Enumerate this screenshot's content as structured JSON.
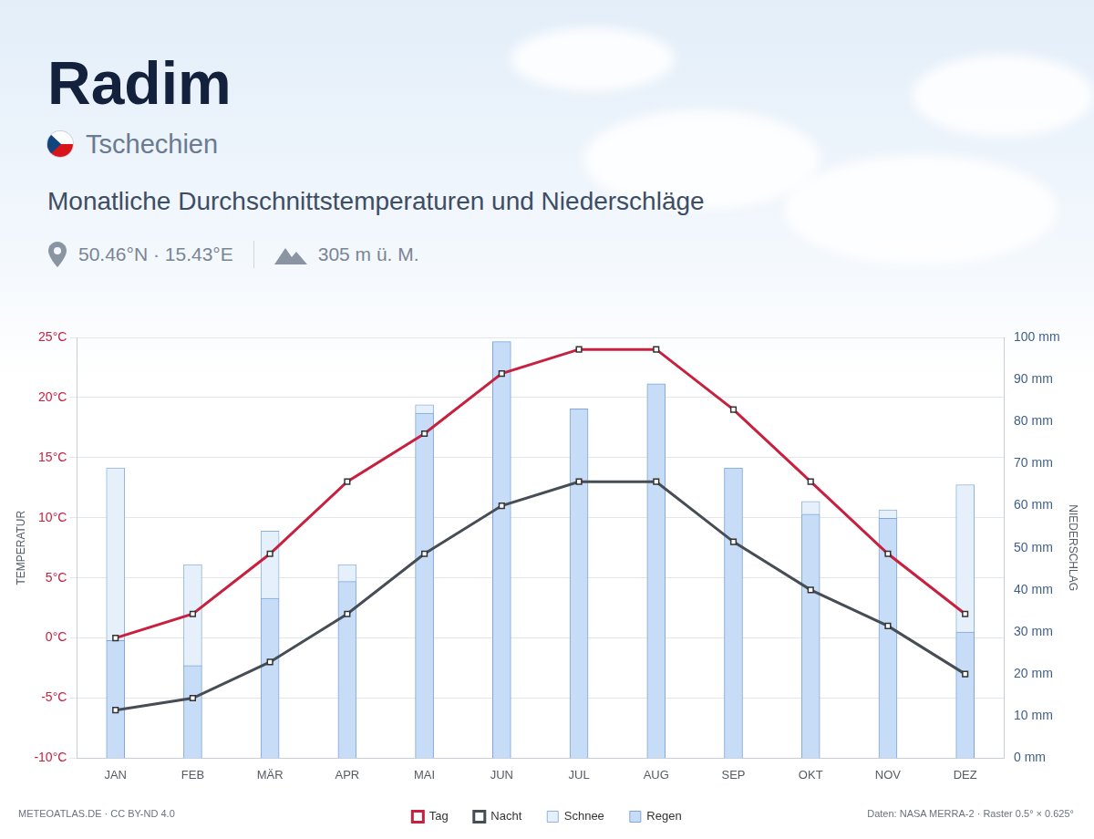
{
  "chart_data": {
    "type": "bar",
    "title": "Radim",
    "country": "Tschechien",
    "subtitle": "Monatliche Durchschnittstemperaturen und Niederschläge",
    "coordinates": "50.46°N · 15.43°E",
    "elevation": "305 m ü. M.",
    "credit": "METEOATLAS.DE · CC BY-ND 4.0",
    "source": "Daten: NASA MERRA-2 · Raster 0.5° × 0.625°",
    "ylabel": "TEMPERATUR",
    "y2label": "NIEDERSCHLAG",
    "categories": [
      "JAN",
      "FEB",
      "MÄR",
      "APR",
      "MAI",
      "JUN",
      "JUL",
      "AUG",
      "SEP",
      "OKT",
      "NOV",
      "DEZ"
    ],
    "series": [
      {
        "name": "Tag",
        "type": "line",
        "color": "#c8203f",
        "marker": "square",
        "line_style": "solid",
        "values": [
          0,
          2,
          7,
          13,
          17,
          22,
          24,
          24,
          19,
          13,
          7,
          2
        ]
      },
      {
        "name": "Nacht",
        "type": "line",
        "color": "#474d55",
        "marker": "square",
        "line_style": "solid",
        "values": [
          -6,
          -5,
          -2,
          2,
          7,
          11,
          13,
          13,
          8,
          4,
          1,
          -3
        ]
      },
      {
        "name": "Schnee",
        "type": "bar",
        "axis": "y2",
        "color": "#e6f0fb",
        "values": [
          41,
          24,
          16,
          4,
          2,
          0,
          0,
          0,
          0,
          3,
          2,
          35
        ]
      },
      {
        "name": "Regen",
        "type": "bar",
        "axis": "y2",
        "color": "#c6dcf7",
        "values": [
          28,
          22,
          38,
          42,
          82,
          99,
          83,
          89,
          69,
          58,
          57,
          30
        ]
      }
    ],
    "ylim": [
      -10,
      25
    ],
    "yticks": [
      {
        "value": -10,
        "label": "-10°C"
      },
      {
        "value": -5,
        "label": "-5°C"
      },
      {
        "value": 0,
        "label": "0°C"
      },
      {
        "value": 5,
        "label": "5°C"
      },
      {
        "value": 10,
        "label": "10°C"
      },
      {
        "value": 15,
        "label": "15°C"
      },
      {
        "value": 20,
        "label": "20°C"
      },
      {
        "value": 25,
        "label": "25°C"
      }
    ],
    "y2lim": [
      0,
      100
    ],
    "y2ticks": [
      {
        "value": 0,
        "label": "0 mm"
      },
      {
        "value": 10,
        "label": "10 mm"
      },
      {
        "value": 20,
        "label": "20 mm"
      },
      {
        "value": 30,
        "label": "30 mm"
      },
      {
        "value": 40,
        "label": "40 mm"
      },
      {
        "value": 50,
        "label": "50 mm"
      },
      {
        "value": 60,
        "label": "60 mm"
      },
      {
        "value": 70,
        "label": "70 mm"
      },
      {
        "value": 80,
        "label": "80 mm"
      },
      {
        "value": 90,
        "label": "90 mm"
      },
      {
        "value": 100,
        "label": "100 mm"
      }
    ],
    "stacked": true,
    "grid": true,
    "legend": "bottom"
  }
}
